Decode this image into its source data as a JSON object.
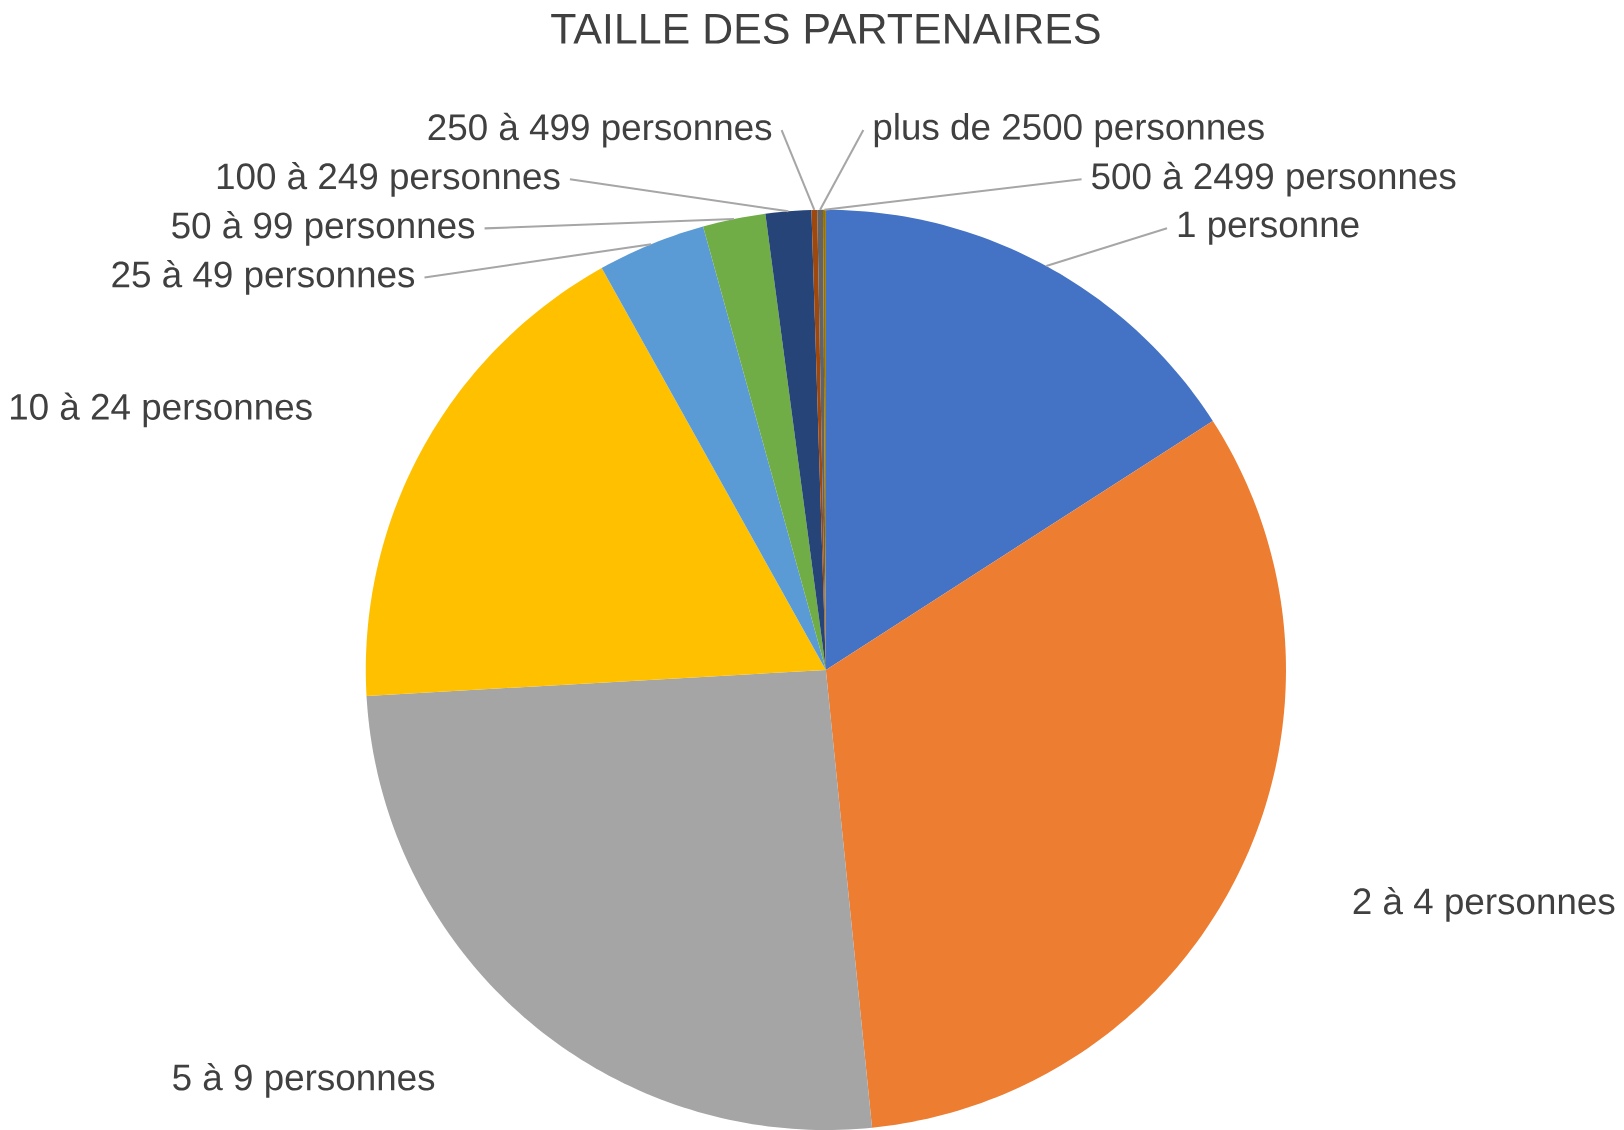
{
  "chart_data": {
    "type": "pie",
    "title": "TAILLE DES PARTENAIRES",
    "categories": [
      "1 personne",
      "2 à 4 personnes",
      "5 à 9 personnes",
      "10 à 24 personnes",
      "25 à 49 personnes",
      "50 à 99 personnes",
      "100 à 249 personnes",
      "250 à 499 personnes",
      "plus de 2500 personnes",
      "500 à 2499 personnes"
    ],
    "values": [
      15.9,
      32.5,
      25.7,
      17.8,
      3.8,
      2.2,
      1.6,
      0.2,
      0.2,
      0.1
    ],
    "colors": [
      "#4472c4",
      "#ed7d31",
      "#a5a5a5",
      "#ffc000",
      "#5b9bd5",
      "#70ad47",
      "#264478",
      "#9e480e",
      "#636363",
      "#997300"
    ]
  }
}
